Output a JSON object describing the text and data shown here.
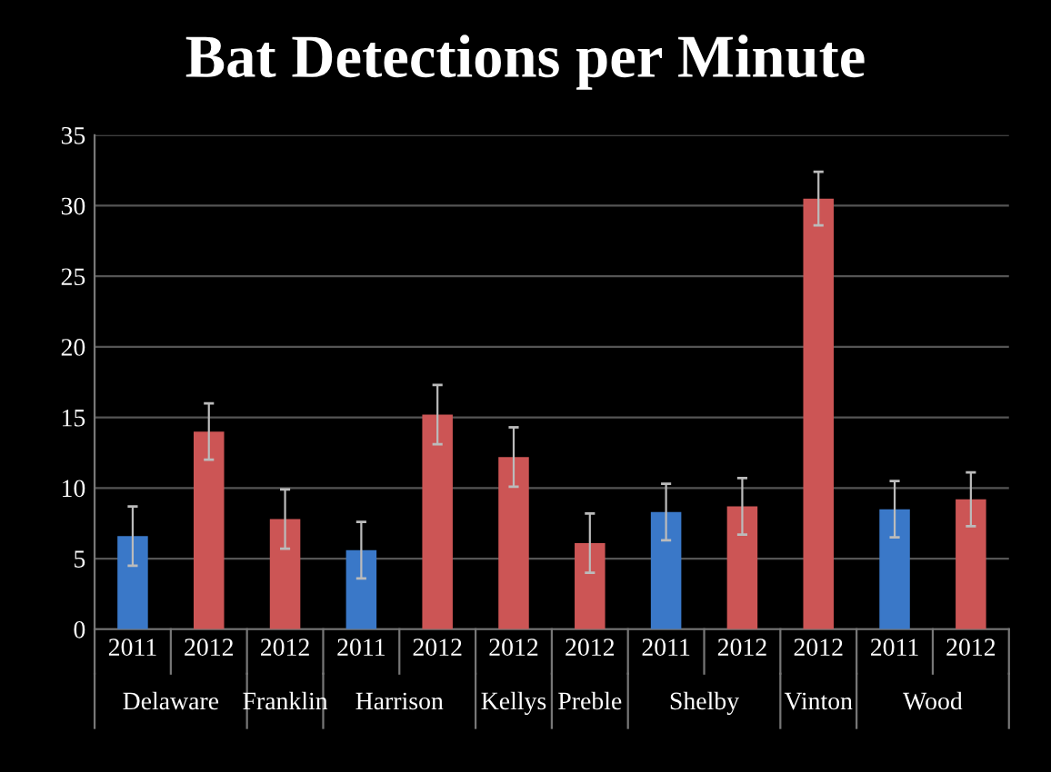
{
  "chart_data": {
    "type": "bar",
    "title": "Bat Detections per Minute",
    "categories": [
      "2011",
      "2012",
      "2012",
      "2011",
      "2012",
      "2012",
      "2012",
      "2011",
      "2012",
      "2012",
      "2011",
      "2012"
    ],
    "values": [
      6.6,
      14.0,
      7.8,
      5.6,
      15.2,
      12.2,
      6.1,
      8.3,
      8.7,
      30.5,
      8.5,
      9.2
    ],
    "errors": [
      2.1,
      2.0,
      2.1,
      2.0,
      2.1,
      2.1,
      2.1,
      2.0,
      2.0,
      1.9,
      2.0,
      1.9
    ],
    "colors": [
      "#3a78c8",
      "#cc5555",
      "#cc5555",
      "#3a78c8",
      "#cc5555",
      "#cc5555",
      "#cc5555",
      "#3a78c8",
      "#cc5555",
      "#cc5555",
      "#3a78c8",
      "#cc5555"
    ],
    "annotations": [
      "Delaware",
      "Franklin",
      "Harrison",
      "Kellys",
      "Preble",
      "Shelby",
      "Vinton",
      "Wood"
    ],
    "ylim": [
      0,
      35
    ],
    "yticks": [
      0,
      5,
      10,
      15,
      20,
      25,
      30,
      35
    ],
    "grid": "y"
  }
}
